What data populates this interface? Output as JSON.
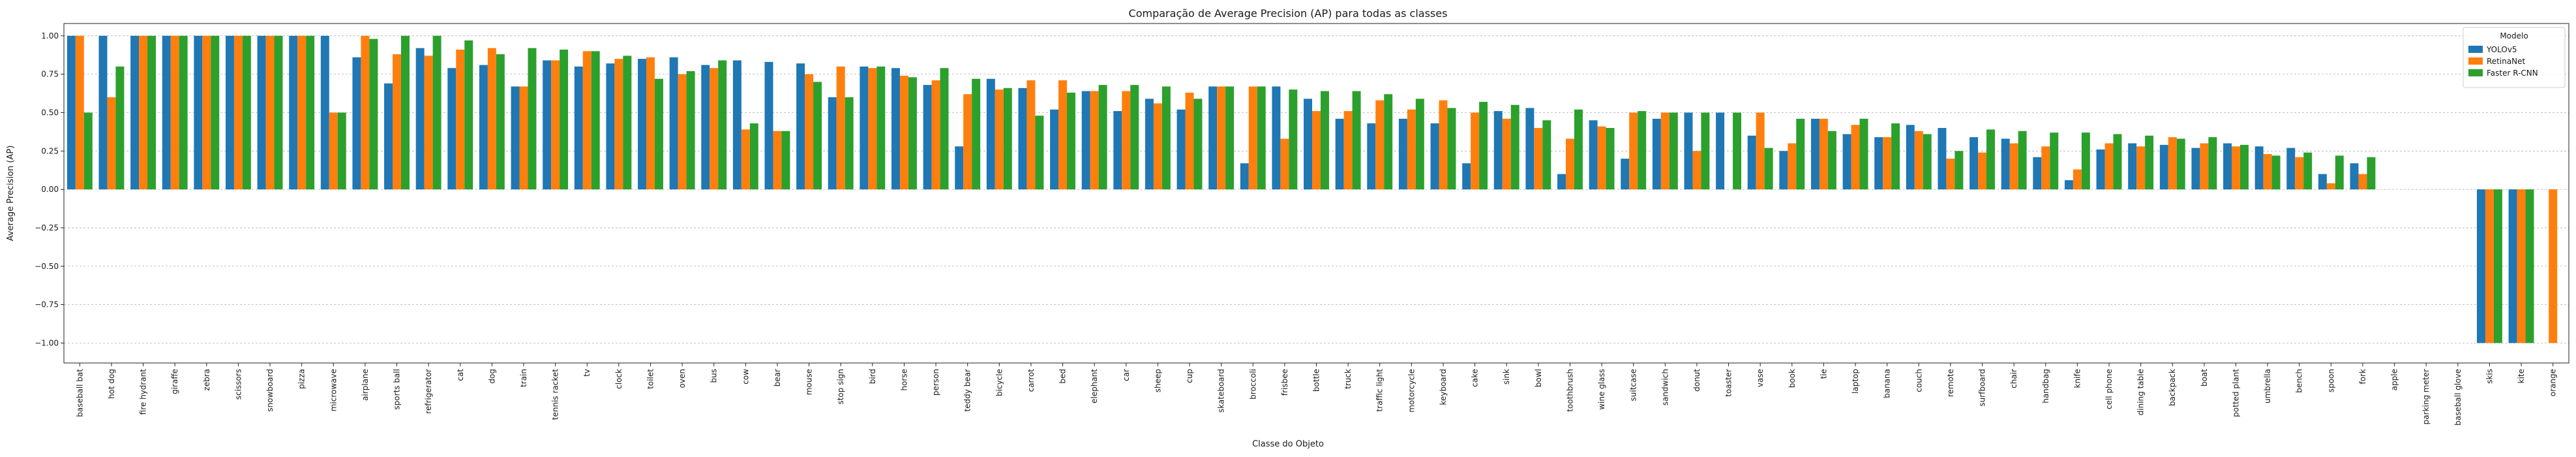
{
  "chart_data": {
    "type": "bar",
    "title": "Comparação de Average Precision (AP) para todas as classes",
    "xlabel": "Classe do Objeto",
    "ylabel": "Average Precision (AP)",
    "ylim": [
      -1.13,
      1.08
    ],
    "yticks": [
      -1.0,
      -0.75,
      -0.5,
      -0.25,
      0.0,
      0.25,
      0.5,
      0.75,
      1.0
    ],
    "ytick_labels": [
      "−1.00",
      "−0.75",
      "−0.50",
      "−0.25",
      "0.00",
      "0.25",
      "0.50",
      "0.75",
      "1.00"
    ],
    "grid": "horizontal dotted",
    "legend": {
      "title": "Modelo",
      "placement": "top-right"
    },
    "categories": [
      "baseball bat",
      "hot dog",
      "fire hydrant",
      "giraffe",
      "zebra",
      "scissors",
      "snowboard",
      "pizza",
      "microwave",
      "airplane",
      "sports ball",
      "refrigerator",
      "cat",
      "dog",
      "train",
      "tennis racket",
      "tv",
      "clock",
      "toilet",
      "oven",
      "bus",
      "cow",
      "bear",
      "mouse",
      "stop sign",
      "bird",
      "horse",
      "person",
      "teddy bear",
      "bicycle",
      "carrot",
      "bed",
      "elephant",
      "car",
      "sheep",
      "cup",
      "skateboard",
      "broccoli",
      "frisbee",
      "bottle",
      "truck",
      "traffic light",
      "motorcycle",
      "keyboard",
      "cake",
      "sink",
      "bowl",
      "toothbrush",
      "wine glass",
      "suitcase",
      "sandwich",
      "donut",
      "toaster",
      "vase",
      "book",
      "tie",
      "laptop",
      "banana",
      "couch",
      "remote",
      "surfboard",
      "chair",
      "handbag",
      "knife",
      "cell phone",
      "dining table",
      "backpack",
      "boat",
      "potted plant",
      "umbrella",
      "bench",
      "spoon",
      "fork",
      "apple",
      "parking meter",
      "baseball glove",
      "skis",
      "kite",
      "orange"
    ],
    "series": [
      {
        "name": "YOLOv5",
        "color": "#1f77b4",
        "values": [
          1.0,
          1.0,
          1.0,
          1.0,
          1.0,
          1.0,
          1.0,
          1.0,
          1.0,
          0.86,
          0.69,
          0.92,
          0.79,
          0.81,
          0.67,
          0.84,
          0.8,
          0.82,
          0.85,
          0.86,
          0.81,
          0.84,
          0.83,
          0.82,
          0.6,
          0.8,
          0.79,
          0.68,
          0.28,
          0.72,
          0.66,
          0.52,
          0.64,
          0.51,
          0.59,
          0.52,
          0.67,
          0.17,
          0.67,
          0.59,
          0.46,
          0.43,
          0.46,
          0.43,
          0.17,
          0.51,
          0.53,
          0.1,
          0.45,
          0.2,
          0.46,
          0.5,
          0.5,
          0.35,
          0.25,
          0.46,
          0.36,
          0.34,
          0.42,
          0.4,
          0.34,
          0.33,
          0.21,
          0.06,
          0.26,
          0.3,
          0.29,
          0.27,
          0.3,
          0.28,
          0.27,
          0.1,
          0.17,
          0.0,
          0.0,
          0.0,
          -1.0,
          -1.0,
          0.0
        ]
      },
      {
        "name": "RetinaNet",
        "color": "#ff7f0e",
        "values": [
          1.0,
          0.6,
          1.0,
          1.0,
          1.0,
          1.0,
          1.0,
          1.0,
          0.5,
          1.0,
          0.88,
          0.87,
          0.91,
          0.92,
          0.67,
          0.84,
          0.9,
          0.85,
          0.86,
          0.75,
          0.79,
          0.39,
          0.38,
          0.75,
          0.8,
          0.79,
          0.74,
          0.71,
          0.62,
          0.65,
          0.71,
          0.71,
          0.64,
          0.64,
          0.56,
          0.63,
          0.67,
          0.67,
          0.33,
          0.51,
          0.51,
          0.58,
          0.52,
          0.58,
          0.5,
          0.46,
          0.4,
          0.33,
          0.41,
          0.5,
          0.5,
          0.25,
          0.0,
          0.5,
          0.3,
          0.46,
          0.42,
          0.34,
          0.38,
          0.2,
          0.24,
          0.3,
          0.28,
          0.13,
          0.3,
          0.28,
          0.34,
          0.3,
          0.28,
          0.23,
          0.21,
          0.04,
          0.1,
          0.0,
          0.0,
          0.0,
          -1.0,
          -1.0,
          -1.0
        ]
      },
      {
        "name": "Faster R-CNN",
        "color": "#2ca02c",
        "values": [
          0.5,
          0.8,
          1.0,
          1.0,
          1.0,
          1.0,
          1.0,
          1.0,
          0.5,
          0.98,
          1.0,
          1.0,
          0.97,
          0.88,
          0.92,
          0.91,
          0.9,
          0.87,
          0.72,
          0.77,
          0.84,
          0.43,
          0.38,
          0.7,
          0.6,
          0.8,
          0.73,
          0.79,
          0.72,
          0.66,
          0.48,
          0.63,
          0.68,
          0.68,
          0.67,
          0.59,
          0.67,
          0.67,
          0.65,
          0.64,
          0.64,
          0.62,
          0.59,
          0.53,
          0.57,
          0.55,
          0.45,
          0.52,
          0.4,
          0.51,
          0.5,
          0.5,
          0.5,
          0.27,
          0.46,
          0.38,
          0.46,
          0.43,
          0.36,
          0.25,
          0.39,
          0.38,
          0.37,
          0.37,
          0.36,
          0.35,
          0.33,
          0.34,
          0.29,
          0.22,
          0.24,
          0.22,
          0.21,
          0.0,
          0.0,
          0.0,
          -1.0,
          -1.0,
          0.0
        ]
      }
    ]
  }
}
